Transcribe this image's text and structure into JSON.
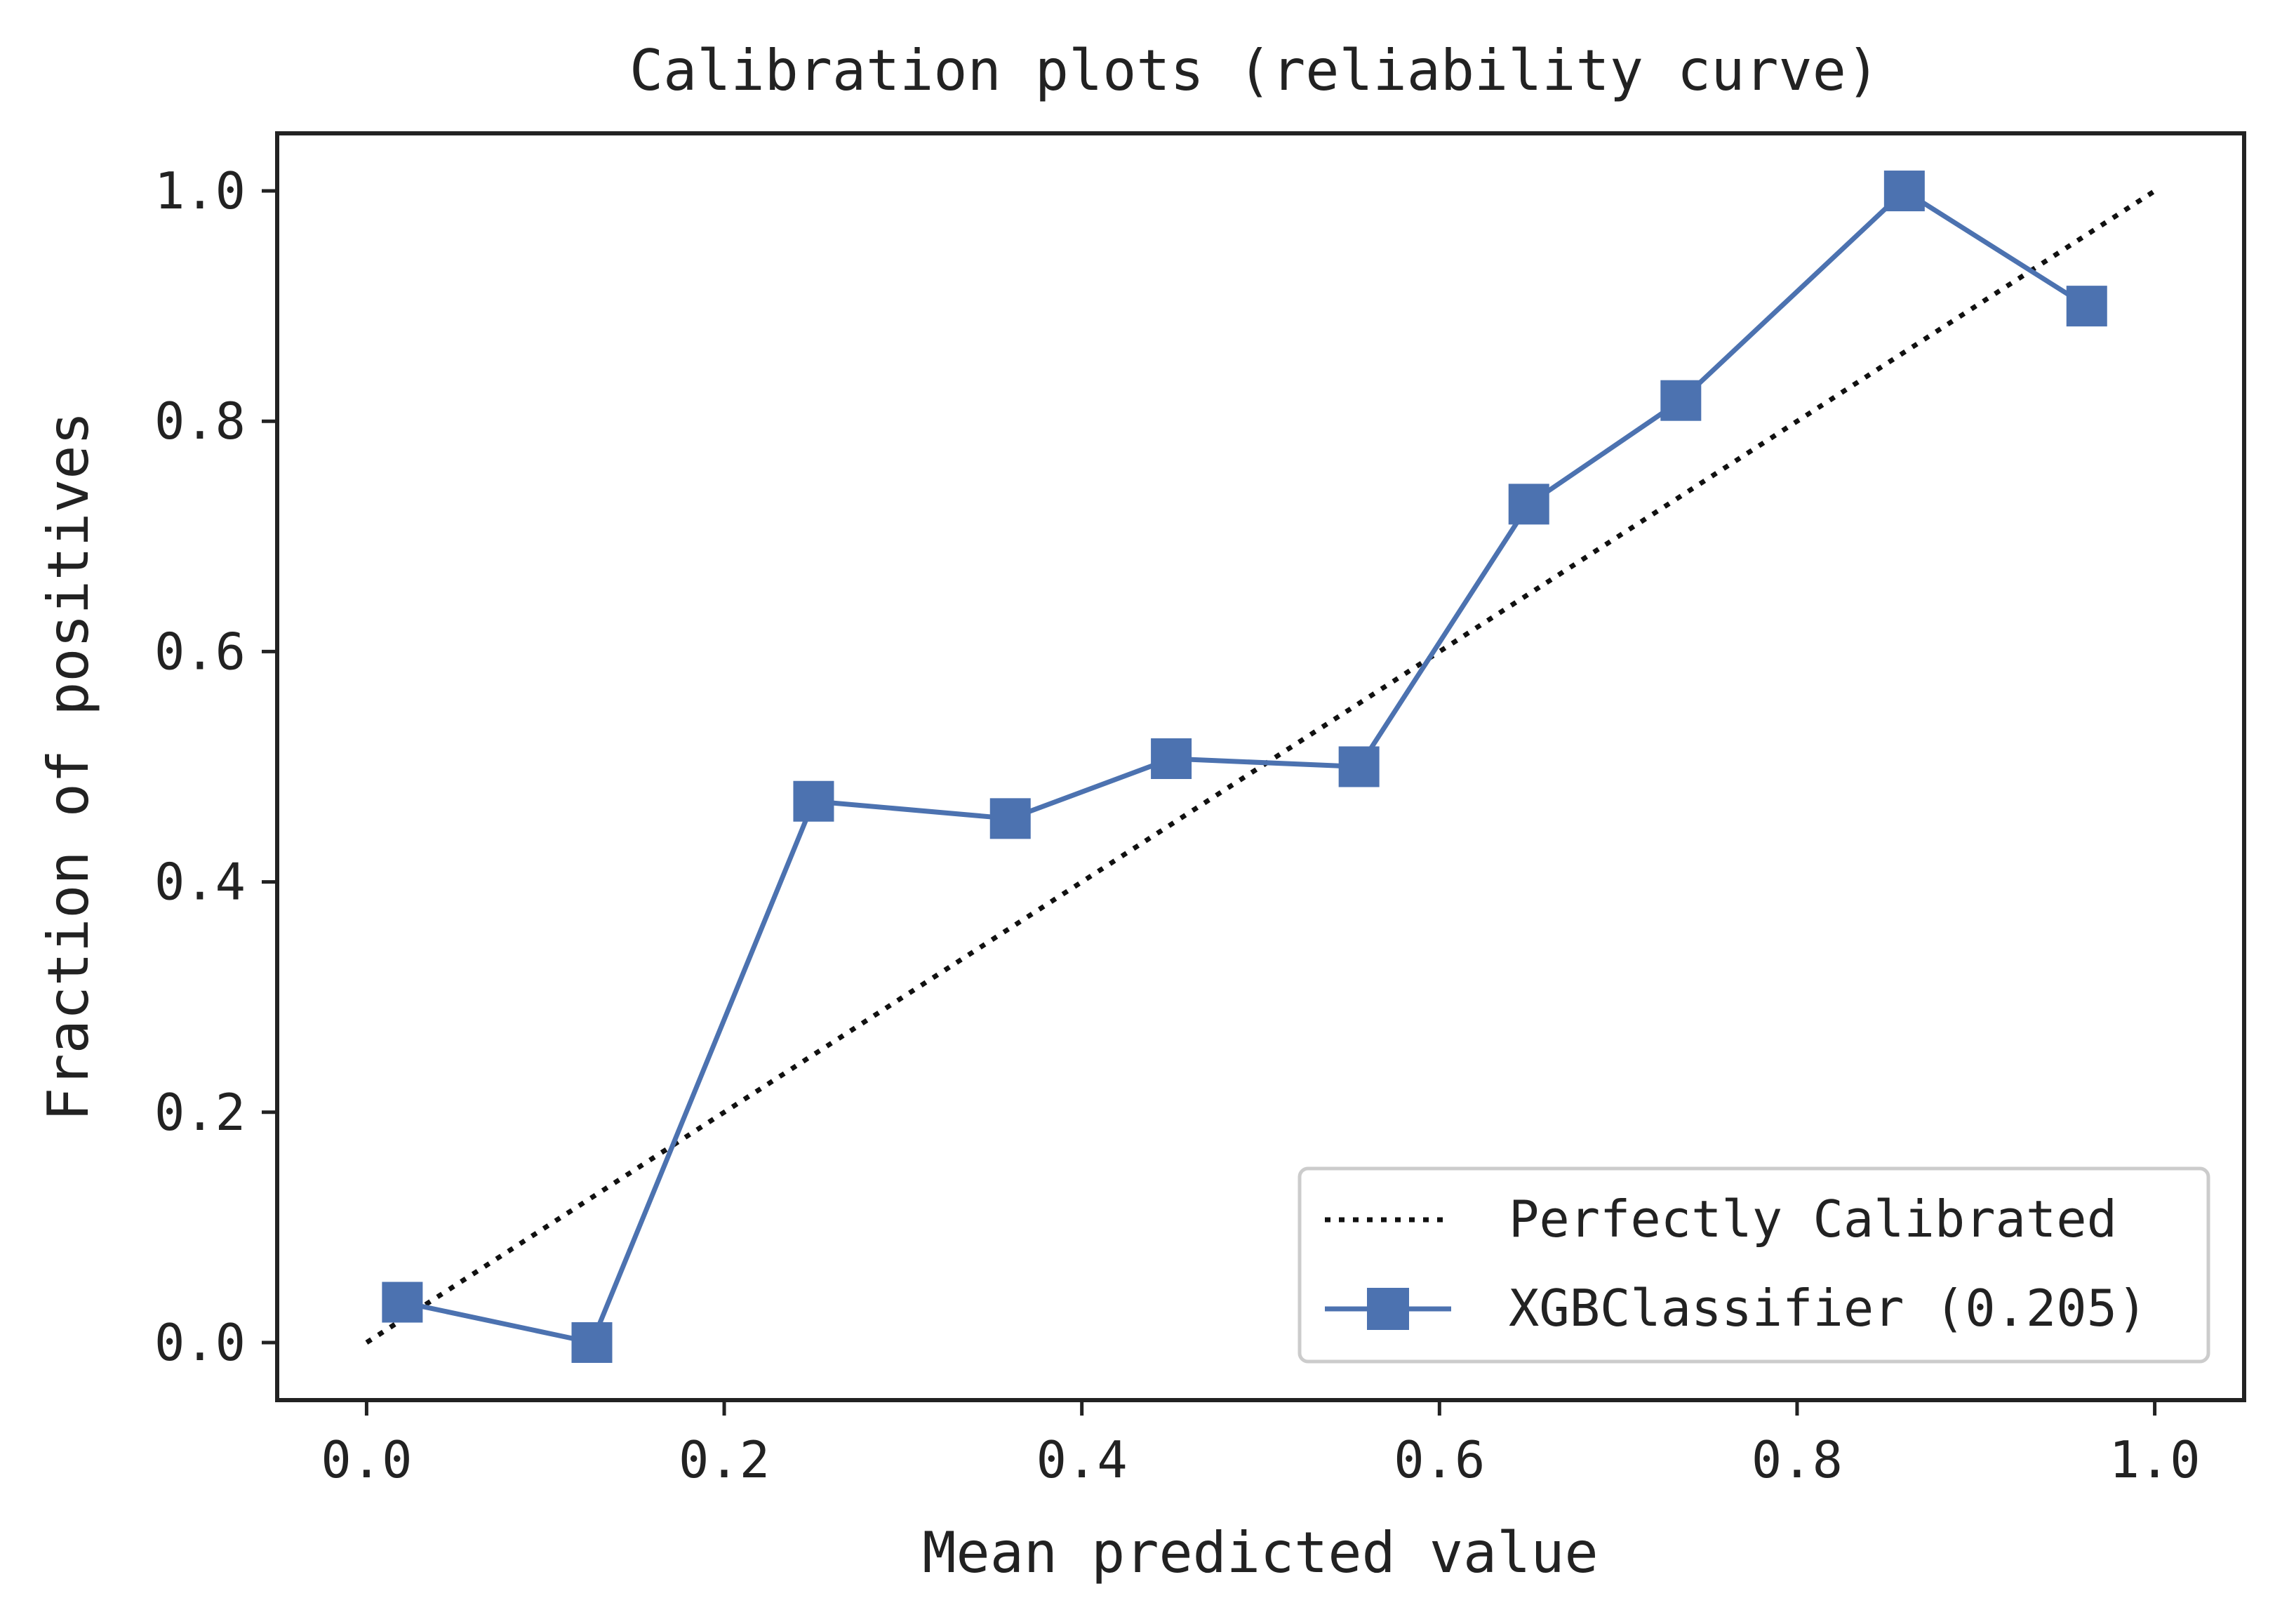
{
  "chart_data": {
    "type": "line",
    "title": "Calibration plots  (reliability curve)",
    "xlabel": "Mean predicted value",
    "ylabel": "Fraction of positives",
    "xlim": [
      -0.05,
      1.05
    ],
    "ylim": [
      -0.05,
      1.05
    ],
    "xticks": [
      "0.0",
      "0.2",
      "0.4",
      "0.6",
      "0.8",
      "1.0"
    ],
    "yticks": [
      "0.0",
      "0.2",
      "0.4",
      "0.6",
      "0.8",
      "1.0"
    ],
    "grid": false,
    "legend_position": "lower-right",
    "series": [
      {
        "name": "Perfectly Calibrated",
        "style": "dotted",
        "color": "#111111",
        "x": [
          0.0,
          1.0
        ],
        "y": [
          0.0,
          1.0
        ]
      },
      {
        "name": "XGBClassifier (0.205)",
        "style": "solid",
        "marker": "square",
        "color": "#4c72b0",
        "x": [
          0.02,
          0.126,
          0.25,
          0.36,
          0.45,
          0.555,
          0.65,
          0.735,
          0.86,
          0.962
        ],
        "y": [
          0.035,
          0.0,
          0.47,
          0.455,
          0.507,
          0.5,
          0.728,
          0.818,
          1.0,
          0.9
        ]
      }
    ]
  }
}
